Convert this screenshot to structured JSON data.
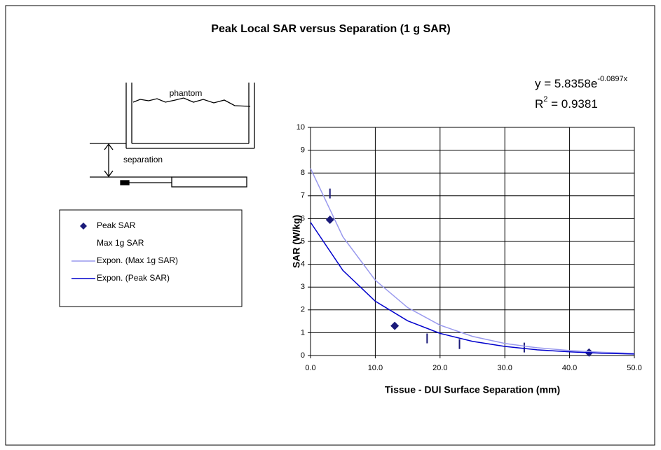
{
  "chart_data": {
    "type": "scatter",
    "title": "Peak Local SAR versus Separation (1 g SAR)",
    "x_label": "Tissue - DUI Surface Separation (mm)",
    "y_label": "SAR (W/kg)",
    "annotations": {
      "eq_main": "y = 5.8358e",
      "eq_exp": "-0.0897x",
      "r2_r": "R",
      "r2_sup": "2",
      "r2_value": " = 0.9381",
      "phantom": "phantom",
      "separation": "separation"
    },
    "xlim": [
      0,
      50
    ],
    "ylim": [
      0,
      10
    ],
    "xticks": [
      {
        "value": 0,
        "label": "0.0"
      },
      {
        "value": 10,
        "label": "10.0"
      },
      {
        "value": 20,
        "label": "20.0"
      },
      {
        "value": 30,
        "label": "30.0"
      },
      {
        "value": 40,
        "label": "40.0"
      },
      {
        "value": 50,
        "label": "50.0"
      }
    ],
    "yticks": [
      0,
      1,
      2,
      3,
      4,
      5,
      6,
      7,
      8,
      9,
      10
    ],
    "grid": true,
    "series": [
      {
        "name": "Peak SAR",
        "color": "#1a1a7a",
        "marker": "diamond",
        "x": [
          3,
          13,
          43
        ],
        "values": [
          5.95,
          1.3,
          0.13
        ]
      },
      {
        "name": "Max 1g SAR",
        "color": "#1a1a7a",
        "marker": "dash",
        "x": [
          3,
          18,
          23,
          33
        ],
        "values": [
          7.1,
          0.75,
          0.5,
          0.35
        ]
      },
      {
        "name": "Expon. (Max 1g SAR)",
        "color": "#9999ee",
        "marker": "line",
        "x": [
          0,
          5,
          10,
          15,
          20,
          25,
          30,
          35,
          40,
          45,
          50
        ],
        "values": [
          8.2,
          5.2,
          3.3,
          2.1,
          1.33,
          0.84,
          0.53,
          0.34,
          0.22,
          0.14,
          0.09
        ]
      },
      {
        "name": "Expon. (Peak SAR)",
        "color": "#0000cc",
        "marker": "line",
        "x": [
          0,
          5,
          10,
          15,
          20,
          25,
          30,
          35,
          40,
          45,
          50
        ],
        "values": [
          5.84,
          3.73,
          2.38,
          1.52,
          0.97,
          0.62,
          0.4,
          0.25,
          0.16,
          0.1,
          0.066
        ]
      }
    ]
  }
}
